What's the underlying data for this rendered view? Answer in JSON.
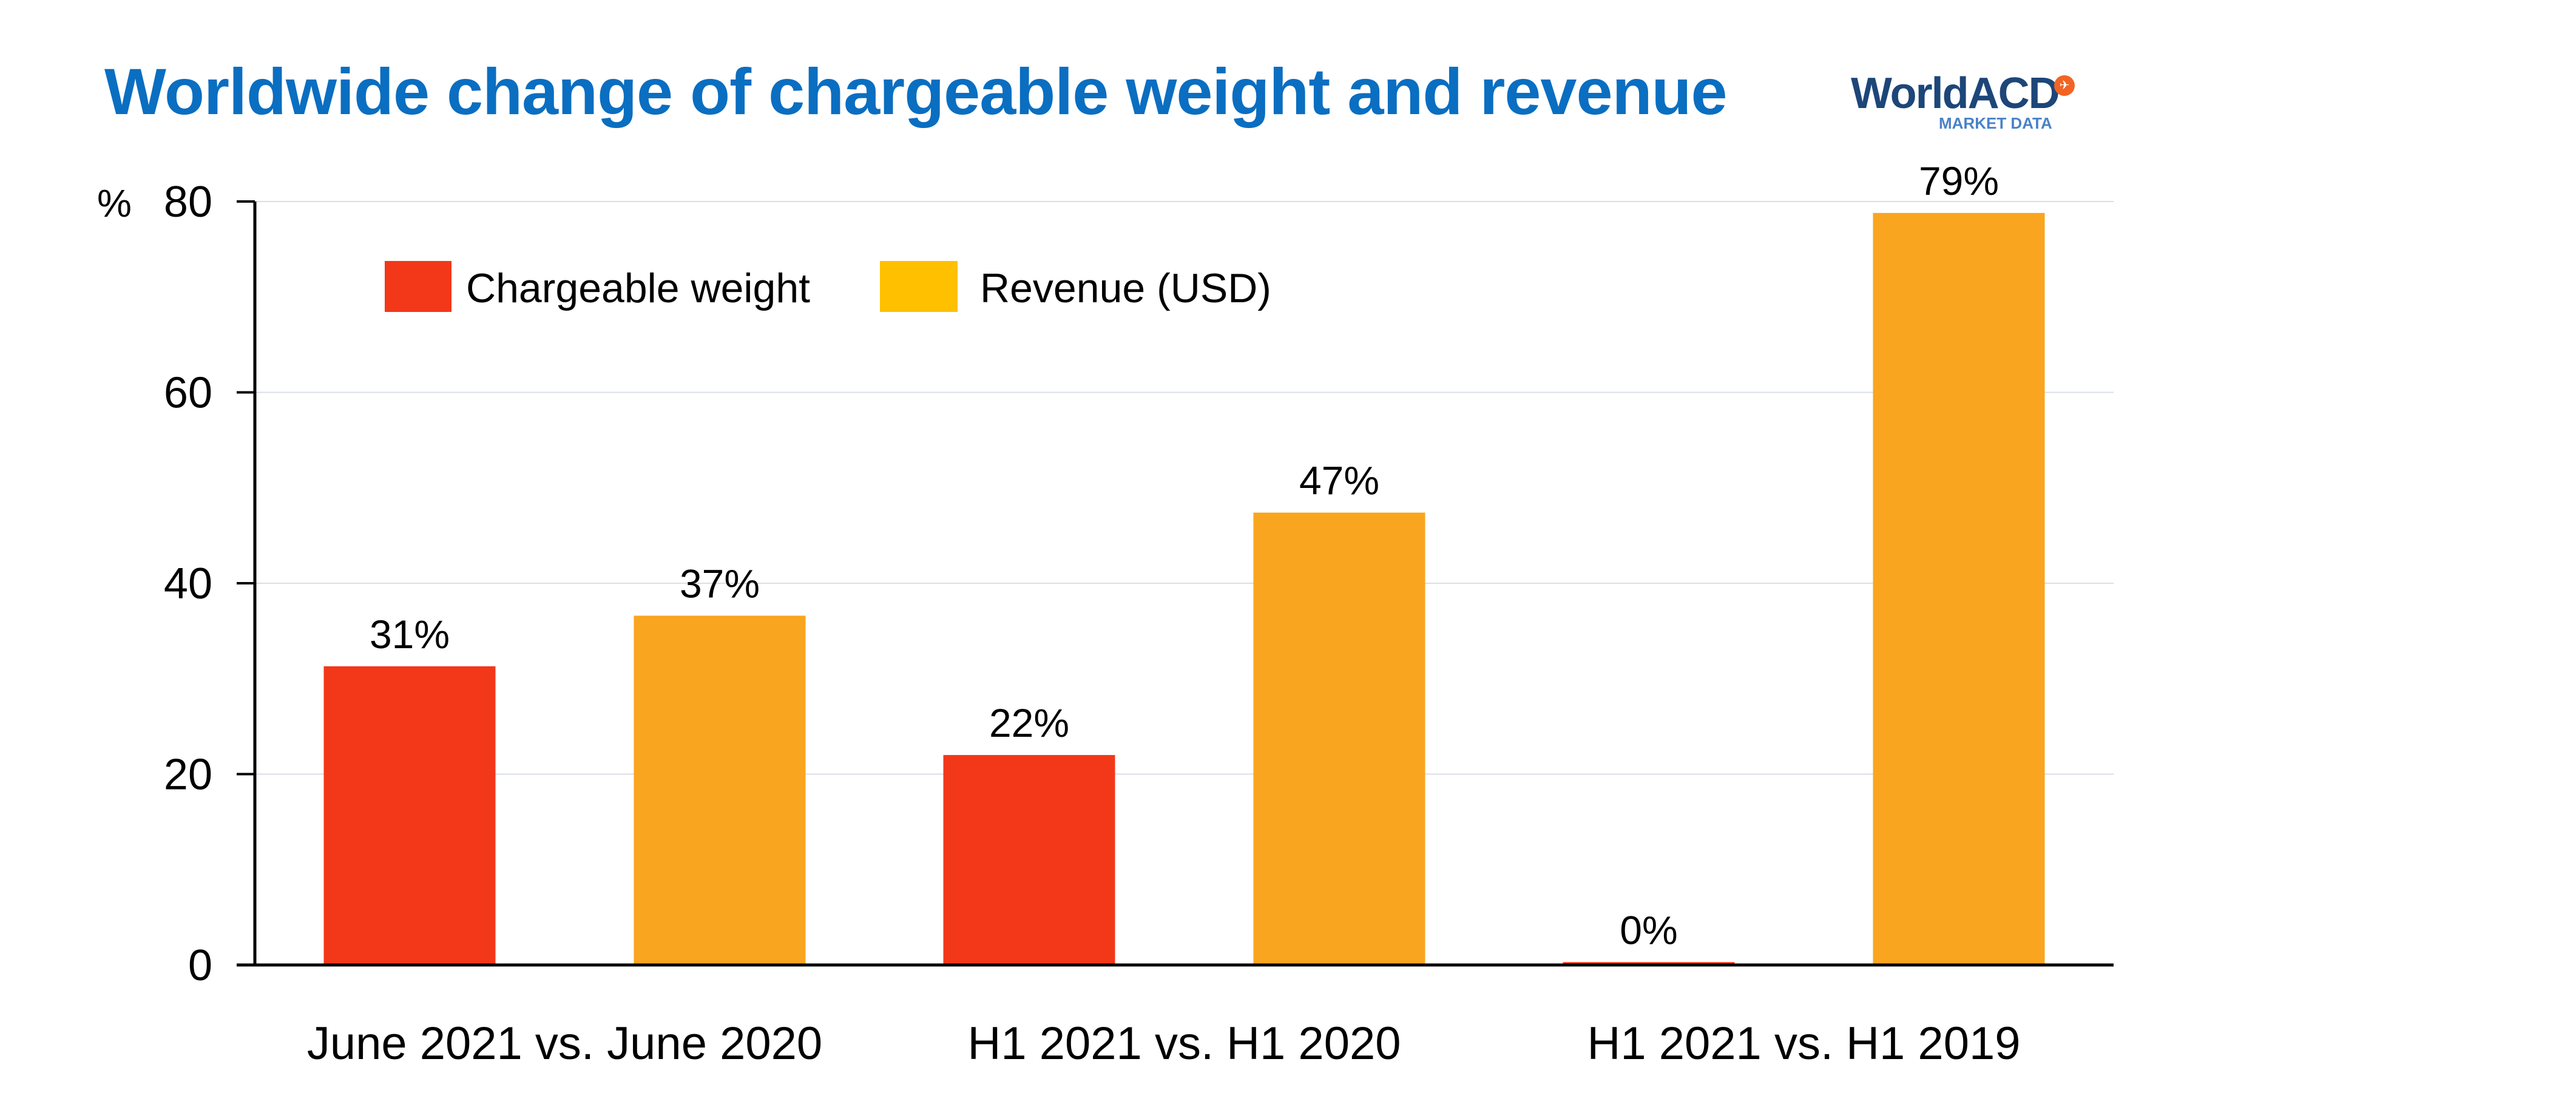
{
  "title": "Worldwide change of chargeable weight and revenue",
  "logo": {
    "name": "WorldACD",
    "sub": "MARKET DATA"
  },
  "chart_data": {
    "type": "bar",
    "title": "Worldwide change of chargeable weight and revenue",
    "ylabel": "%",
    "xlabel": "",
    "ylim": [
      0,
      80
    ],
    "yticks": [
      0,
      20,
      40,
      60,
      80
    ],
    "grid": true,
    "legend_position": "top-left",
    "categories": [
      "June 2021 vs. June 2020",
      "H1 2021 vs. H1 2020",
      "H1 2021 vs. H1 2019"
    ],
    "series": [
      {
        "name": "Chargeable weight",
        "values": [
          31.3,
          22,
          0.3
        ],
        "labels": [
          "31%",
          "22%",
          "0%"
        ],
        "color": "#F23819",
        "legend_color": "#F23819"
      },
      {
        "name": "Revenue (USD)",
        "values": [
          36.6,
          47.4,
          78.8
        ],
        "labels": [
          "37%",
          "47%",
          "79%"
        ],
        "color": "#F9A51F",
        "legend_color": "#FFC000"
      }
    ]
  }
}
